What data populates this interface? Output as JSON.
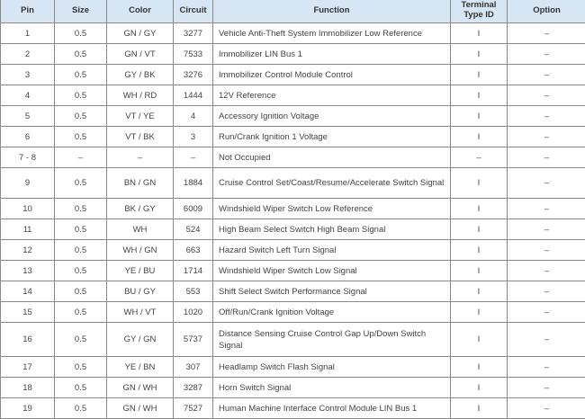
{
  "headers": {
    "pin": "Pin",
    "size": "Size",
    "color": "Color",
    "circuit": "Circuit",
    "function": "Function",
    "type_id": "Terminal Type ID",
    "option": "Option"
  },
  "rows": [
    {
      "pin": "1",
      "size": "0.5",
      "color": "GN / GY",
      "circuit": "3277",
      "function": "Vehicle Anti-Theft System Immobilizer Low Reference",
      "type_id": "I",
      "option": "–"
    },
    {
      "pin": "2",
      "size": "0.5",
      "color": "GN / VT",
      "circuit": "7533",
      "function": "Immobilizer LIN Bus 1",
      "type_id": "I",
      "option": "–"
    },
    {
      "pin": "3",
      "size": "0.5",
      "color": "GY / BK",
      "circuit": "3276",
      "function": "Immobilizer Control Module Control",
      "type_id": "I",
      "option": "–"
    },
    {
      "pin": "4",
      "size": "0.5",
      "color": "WH / RD",
      "circuit": "1444",
      "function": "12V Reference",
      "type_id": "I",
      "option": "–"
    },
    {
      "pin": "5",
      "size": "0.5",
      "color": "VT / YE",
      "circuit": "4",
      "function": "Accessory Ignition Voltage",
      "type_id": "I",
      "option": "–"
    },
    {
      "pin": "6",
      "size": "0.5",
      "color": "VT / BK",
      "circuit": "3",
      "function": "Run/Crank Ignition 1 Voltage",
      "type_id": "I",
      "option": "–"
    },
    {
      "pin": "7 - 8",
      "size": "–",
      "color": "–",
      "circuit": "–",
      "function": "Not Occupied",
      "type_id": "–",
      "option": "–"
    },
    {
      "pin": "9",
      "size": "0.5",
      "color": "BN / GN",
      "circuit": "1884",
      "function": "Cruise Control Set/Coast/Resume/Accelerate Switch Signal",
      "type_id": "I",
      "option": "–"
    },
    {
      "pin": "10",
      "size": "0.5",
      "color": "BK / GY",
      "circuit": "6009",
      "function": "Windshield Wiper Switch Low Reference",
      "type_id": "I",
      "option": "–"
    },
    {
      "pin": "11",
      "size": "0.5",
      "color": "WH",
      "circuit": "524",
      "function": "High Beam Select Switch High Beam Signal",
      "type_id": "I",
      "option": "–"
    },
    {
      "pin": "12",
      "size": "0.5",
      "color": "WH / GN",
      "circuit": "663",
      "function": "Hazard Switch Left Turn Signal",
      "type_id": "I",
      "option": "–"
    },
    {
      "pin": "13",
      "size": "0.5",
      "color": "YE / BU",
      "circuit": "1714",
      "function": "Windshield Wiper Switch Low Signal",
      "type_id": "I",
      "option": "–"
    },
    {
      "pin": "14",
      "size": "0.5",
      "color": "BU / GY",
      "circuit": "553",
      "function": "Shift Select Switch Performance Signal",
      "type_id": "I",
      "option": "–"
    },
    {
      "pin": "15",
      "size": "0.5",
      "color": "WH / VT",
      "circuit": "1020",
      "function": "Off/Run/Crank Ignition Voltage",
      "type_id": "I",
      "option": "–"
    },
    {
      "pin": "16",
      "size": "0.5",
      "color": "GY / GN",
      "circuit": "5737",
      "function": "Distance Sensing Cruise Control Gap Up/Down Switch Signal",
      "type_id": "I",
      "option": "–"
    },
    {
      "pin": "17",
      "size": "0.5",
      "color": "YE / BN",
      "circuit": "307",
      "function": "Headlamp Switch Flash Signal",
      "type_id": "I",
      "option": "–"
    },
    {
      "pin": "18",
      "size": "0.5",
      "color": "GN / WH",
      "circuit": "3287",
      "function": "Horn Switch Signal",
      "type_id": "I",
      "option": "–"
    },
    {
      "pin": "19",
      "size": "0.5",
      "color": "GN / WH",
      "circuit": "7527",
      "function": "Human Machine Interface Control Module LIN Bus 1",
      "type_id": "I",
      "option": "–"
    }
  ]
}
